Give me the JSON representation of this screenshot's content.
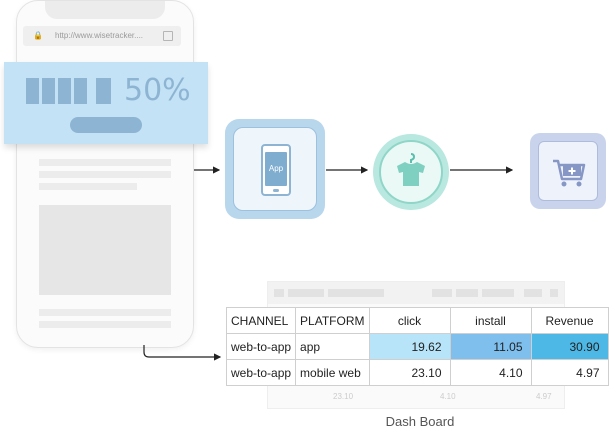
{
  "phone": {
    "url": "http://www.wisetracker....",
    "banner_percent": "50%"
  },
  "dashboard": {
    "headers": [
      "CHANNEL",
      "PLATFORM",
      "click",
      "install",
      "Revenue"
    ],
    "rows": [
      {
        "channel": "web-to-app",
        "platform": "app",
        "click": "19.62",
        "install": "11.05",
        "revenue": "30.90"
      },
      {
        "channel": "web-to-app",
        "platform": "mobile web",
        "click": "23.10",
        "install": "4.10",
        "revenue": "4.97"
      }
    ],
    "ghost_values": [
      "23.10",
      "4.10",
      "4.97"
    ],
    "highlight_colors": {
      "click": "#b7e4f9",
      "install": "#7fbfee",
      "revenue": "#4db8e6"
    },
    "caption": "Dash Board"
  },
  "flow": {
    "step_app_label": "App",
    "icons": [
      "app-phone-icon",
      "shirt-hanger-icon",
      "add-to-cart-icon"
    ]
  },
  "colors": {
    "banner_bg": "#c4e2f5",
    "banner_accent": "#8db5d3",
    "teal": "#8fd6c8",
    "cart_blue": "#aebbdc"
  }
}
